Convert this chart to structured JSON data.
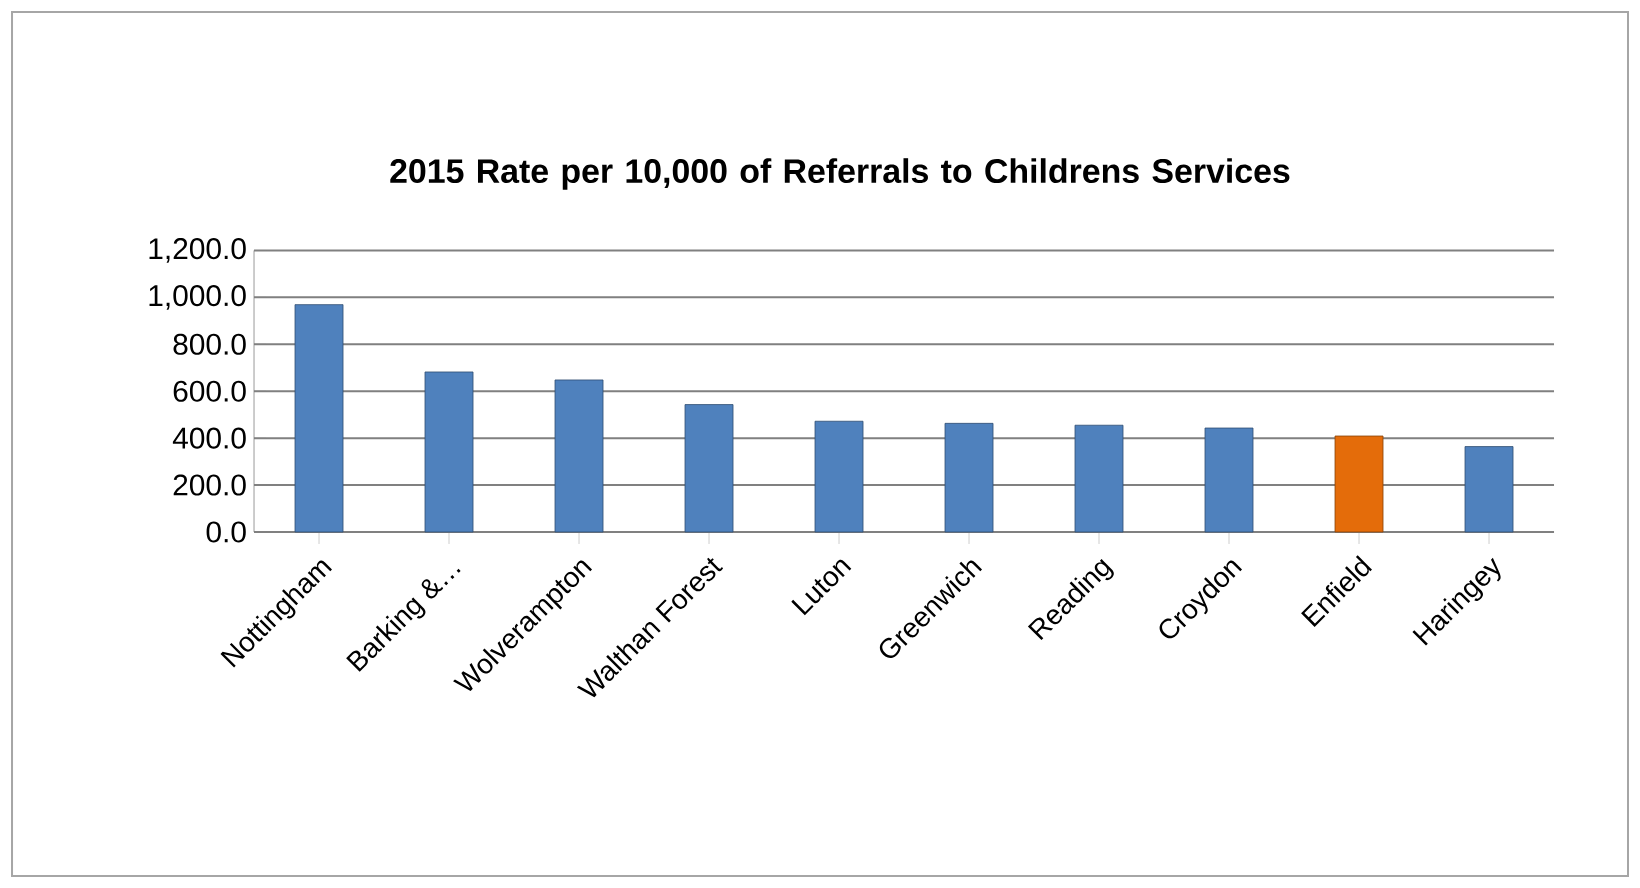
{
  "chart_data": {
    "type": "bar",
    "title": "2015 Rate per 10,000 of Referrals to Childrens Services",
    "categories": [
      "Nottingham",
      "Barking &…",
      "Wolverampton",
      "Walthan Forest",
      "Luton",
      "Greenwich",
      "Reading",
      "Croydon",
      "Enfield",
      "Haringey"
    ],
    "values": [
      969,
      682,
      648,
      543,
      472,
      463,
      455,
      443,
      409,
      364
    ],
    "colors": [
      "#4f81bd",
      "#4f81bd",
      "#4f81bd",
      "#4f81bd",
      "#4f81bd",
      "#4f81bd",
      "#4f81bd",
      "#4f81bd",
      "#e46c0a",
      "#4f81bd"
    ],
    "ylim": [
      0,
      1200
    ],
    "yticks": [
      {
        "value": 0,
        "label": "0.0"
      },
      {
        "value": 200,
        "label": "200.0"
      },
      {
        "value": 400,
        "label": "400.0"
      },
      {
        "value": 600,
        "label": "600.0"
      },
      {
        "value": 800,
        "label": "800.0"
      },
      {
        "value": 1000,
        "label": "1,000.0"
      },
      {
        "value": 1200,
        "label": "1,200.0"
      }
    ],
    "grid": "y"
  }
}
